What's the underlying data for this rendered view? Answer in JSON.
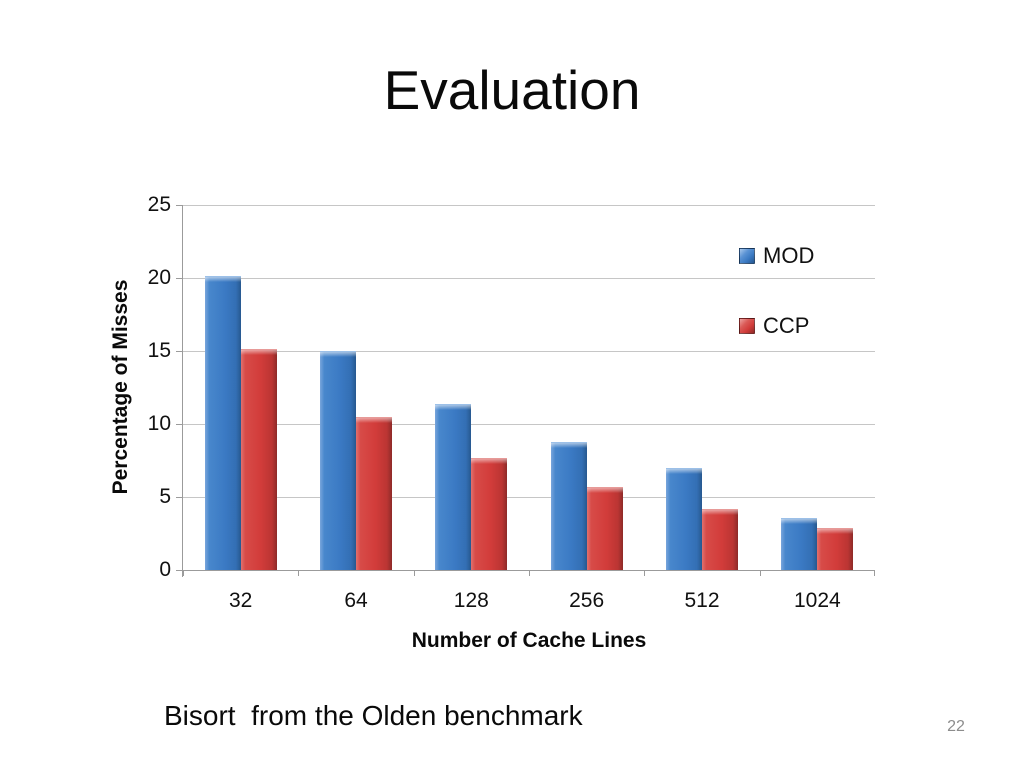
{
  "slide": {
    "title": "Evaluation",
    "caption": "Bisort  from the Olden benchmark",
    "page_number": "22"
  },
  "chart_data": {
    "type": "bar",
    "title": "",
    "categories": [
      "32",
      "64",
      "128",
      "256",
      "512",
      "1024"
    ],
    "series": [
      {
        "name": "MOD",
        "color": "#3B7AC4",
        "values": [
          20.1,
          14.9,
          11.3,
          8.7,
          6.9,
          3.5
        ]
      },
      {
        "name": "CCP",
        "color": "#D23C3A",
        "values": [
          15.1,
          10.4,
          7.6,
          5.6,
          4.1,
          2.8
        ]
      }
    ],
    "xlabel": "Number of Cache Lines",
    "ylabel": "Percentage of Misses",
    "ylim": [
      0,
      25
    ],
    "yticks": [
      0,
      5,
      10,
      15,
      20,
      25
    ],
    "grid": "horizontal",
    "legend_position": "right-top",
    "gridline_color": "#C6C6C6",
    "axis_color": "#9B9B9B"
  }
}
